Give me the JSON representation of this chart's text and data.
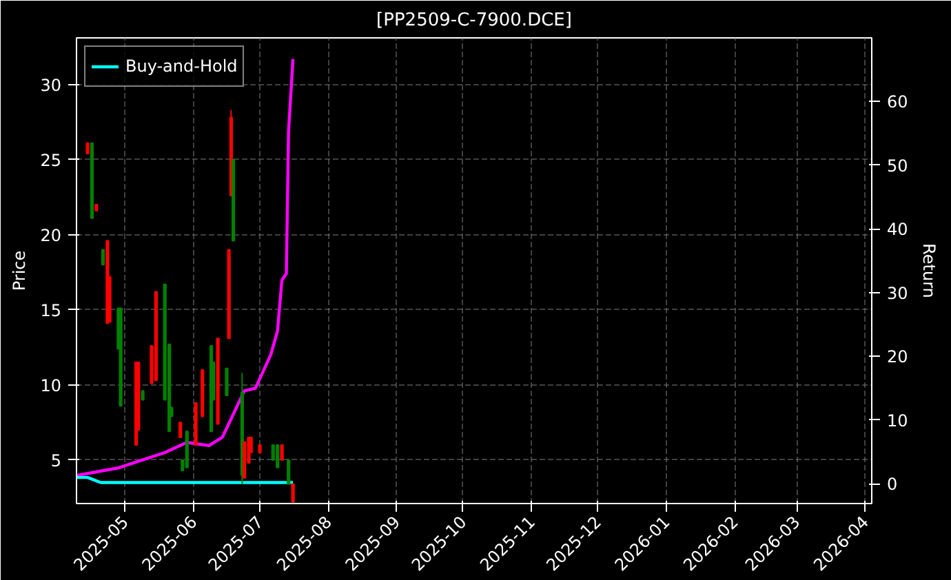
{
  "chart_data": {
    "type": "candlestick",
    "title": "[PP2509-C-7900.DCE]",
    "ylabel": "Price",
    "y2label": "Return",
    "xlim": [
      "2025-04-09",
      "2026-04-04"
    ],
    "xticks": [
      "2025-05",
      "2025-06",
      "2025-07",
      "2025-08",
      "2025-09",
      "2025-10",
      "2025-11",
      "2025-12",
      "2026-01",
      "2026-02",
      "2026-03",
      "2026-04"
    ],
    "ylim": [
      2.1,
      33.1
    ],
    "yticks": [
      5,
      10,
      15,
      20,
      25,
      30
    ],
    "y2lim": [
      -3.1,
      70
    ],
    "y2ticks": [
      0,
      10,
      20,
      30,
      40,
      50,
      60
    ],
    "grid": true,
    "legend": "top left",
    "series": [
      {
        "x": [
          "2025-04-14",
          "2025-04-16",
          "2025-04-18",
          "2025-04-21",
          "2025-04-23",
          "2025-04-24",
          "2025-04-28",
          "2025-04-29",
          "2025-05-06",
          "2025-05-07",
          "2025-05-09",
          "2025-05-13",
          "2025-05-15",
          "2025-05-19",
          "2025-05-21",
          "2025-05-22",
          "2025-05-26",
          "2025-05-27",
          "2025-05-29",
          "2025-06-02",
          "2025-06-05",
          "2025-06-09",
          "2025-06-10",
          "2025-06-12",
          "2025-06-16",
          "2025-06-17",
          "2025-06-18",
          "2025-06-19",
          "2025-06-23",
          "2025-06-24",
          "2025-06-26",
          "2025-06-27",
          "2025-07-01",
          "2025-07-07",
          "2025-07-09",
          "2025-07-11",
          "2025-07-14",
          "2025-07-16"
        ],
        "ohlc": [
          [
            25.4,
            26.1,
            25.4,
            26.1
          ],
          [
            26.1,
            26.1,
            21.1,
            21.1
          ],
          [
            21.6,
            22.0,
            21.6,
            22.0
          ],
          [
            19.0,
            19.0,
            18.0,
            18.0
          ],
          [
            14.1,
            19.6,
            14.1,
            19.6
          ],
          [
            14.2,
            17.2,
            14.2,
            17.2
          ],
          [
            15.1,
            15.1,
            12.4,
            12.4
          ],
          [
            15.1,
            15.1,
            8.6,
            8.6
          ],
          [
            6.0,
            11.5,
            6.0,
            11.5
          ],
          [
            7.0,
            11.5,
            7.0,
            11.5
          ],
          [
            9.6,
            9.6,
            9.0,
            9.0
          ],
          [
            10.1,
            12.6,
            10.1,
            12.6
          ],
          [
            10.3,
            16.2,
            10.3,
            16.2
          ],
          [
            16.7,
            16.7,
            9.0,
            9.0
          ],
          [
            12.7,
            12.7,
            6.9,
            6.9
          ],
          [
            8.5,
            8.5,
            7.9,
            7.9
          ],
          [
            6.5,
            7.5,
            6.5,
            7.5
          ],
          [
            5.0,
            5.0,
            4.3,
            4.3
          ],
          [
            6.9,
            6.9,
            4.5,
            4.5
          ],
          [
            6.0,
            8.8,
            6.0,
            8.8
          ],
          [
            7.9,
            11.0,
            7.9,
            11.0
          ],
          [
            12.6,
            12.6,
            6.9,
            6.9
          ],
          [
            11.5,
            11.5,
            9.0,
            9.0
          ],
          [
            7.4,
            13.1,
            7.4,
            13.1
          ],
          [
            11.1,
            11.1,
            9.3,
            9.3
          ],
          [
            13.1,
            19.0,
            13.1,
            19.0
          ],
          [
            22.6,
            28.3,
            22.6,
            27.8
          ],
          [
            25.0,
            25.0,
            19.6,
            19.6
          ],
          [
            9.5,
            10.8,
            3.4,
            4.0
          ],
          [
            3.8,
            6.2,
            3.8,
            6.2
          ],
          [
            4.8,
            6.5,
            4.8,
            6.5
          ],
          [
            5.5,
            6.5,
            5.5,
            6.5
          ],
          [
            5.5,
            6.0,
            5.5,
            6.0
          ],
          [
            6.0,
            6.0,
            5.0,
            5.0
          ],
          [
            6.0,
            6.0,
            4.5,
            4.5
          ],
          [
            5.0,
            6.0,
            5.0,
            6.0
          ],
          [
            5.0,
            5.0,
            3.4,
            3.4
          ],
          [
            2.2,
            3.4,
            2.2,
            3.4
          ]
        ],
        "colors": [
          "#ff0000",
          "#008000",
          "#ff0000",
          "#008000",
          "#ff0000",
          "#ff0000",
          "#008000",
          "#008000",
          "#ff0000",
          "#ff0000",
          "#008000",
          "#ff0000",
          "#ff0000",
          "#008000",
          "#008000",
          "#008000",
          "#ff0000",
          "#008000",
          "#008000",
          "#ff0000",
          "#ff0000",
          "#008000",
          "#008000",
          "#ff0000",
          "#008000",
          "#ff0000",
          "#ff0000",
          "#008000",
          "#008000",
          "#ff0000",
          "#ff0000",
          "#ff0000",
          "#ff0000",
          "#008000",
          "#008000",
          "#ff0000",
          "#008000",
          "#ff0000"
        ]
      },
      {
        "type": "line",
        "axis": "y2",
        "color": "#ff00ff",
        "x": [
          "2025-04-09",
          "2025-04-28",
          "2025-05-19",
          "2025-05-29",
          "2025-06-08",
          "2025-06-14",
          "2025-06-18",
          "2025-06-24",
          "2025-06-29",
          "2025-07-06",
          "2025-07-09",
          "2025-07-11",
          "2025-07-13",
          "2025-07-14",
          "2025-07-16"
        ],
        "values": [
          1.3,
          2.5,
          4.9,
          6.5,
          6.0,
          7.3,
          10.2,
          14.6,
          15.0,
          20.3,
          24.0,
          32.0,
          33.0,
          55.4,
          66.7
        ]
      },
      {
        "type": "line",
        "axis": "y2",
        "name": "Buy-and-Hold",
        "color": "#00ffff",
        "x": [
          "2025-04-09",
          "2025-04-14",
          "2025-04-20",
          "2025-07-16"
        ],
        "values": [
          1.0,
          1.0,
          0.2,
          0.2
        ]
      }
    ]
  }
}
